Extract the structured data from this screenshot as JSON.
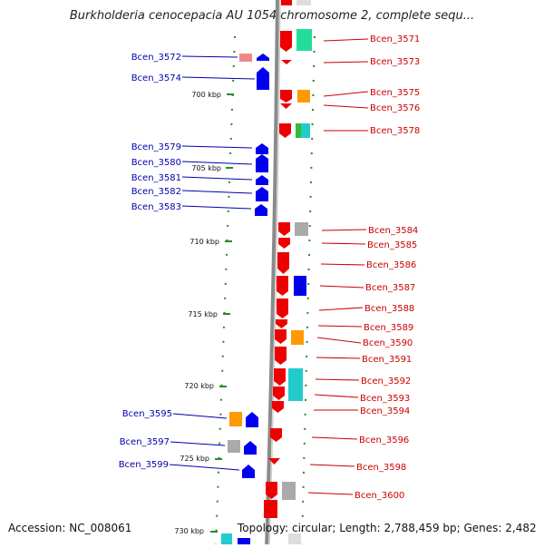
{
  "title": "Burkholderia cenocepacia AU 1054 chromosome 2, complete sequ...",
  "footer": {
    "accession": "Accession: NC_008061",
    "topology": "Topology: circular; Length: 2,788,459 bp; Genes: 2,482"
  },
  "scale_labels": [
    "700 kbp",
    "705 kbp",
    "710 kbp",
    "715 kbp",
    "720 kbp",
    "725 kbp",
    "730 kbp"
  ],
  "left_genes": [
    "Bcen_3572",
    "Bcen_3574",
    "Bcen_3579",
    "Bcen_3580",
    "Bcen_3581",
    "Bcen_3582",
    "Bcen_3583",
    "Bcen_3595",
    "Bcen_3597",
    "Bcen_3599"
  ],
  "right_genes": [
    "Bcen_3571",
    "Bcen_3573",
    "Bcen_3575",
    "Bcen_3576",
    "Bcen_3578",
    "Bcen_3584",
    "Bcen_3585",
    "Bcen_3586",
    "Bcen_3587",
    "Bcen_3588",
    "Bcen_3589",
    "Bcen_3590",
    "Bcen_3591",
    "Bcen_3592",
    "Bcen_3593",
    "Bcen_3594",
    "Bcen_3596",
    "Bcen_3598",
    "Bcen_3600"
  ],
  "colors": {
    "left_label": "#0000aa",
    "right_label": "#cc0000",
    "forward_gene": "#ee0000",
    "reverse_gene": "#0000ee",
    "scale_tick": "#2a8a2a",
    "backbone": "#8a8a8a"
  }
}
